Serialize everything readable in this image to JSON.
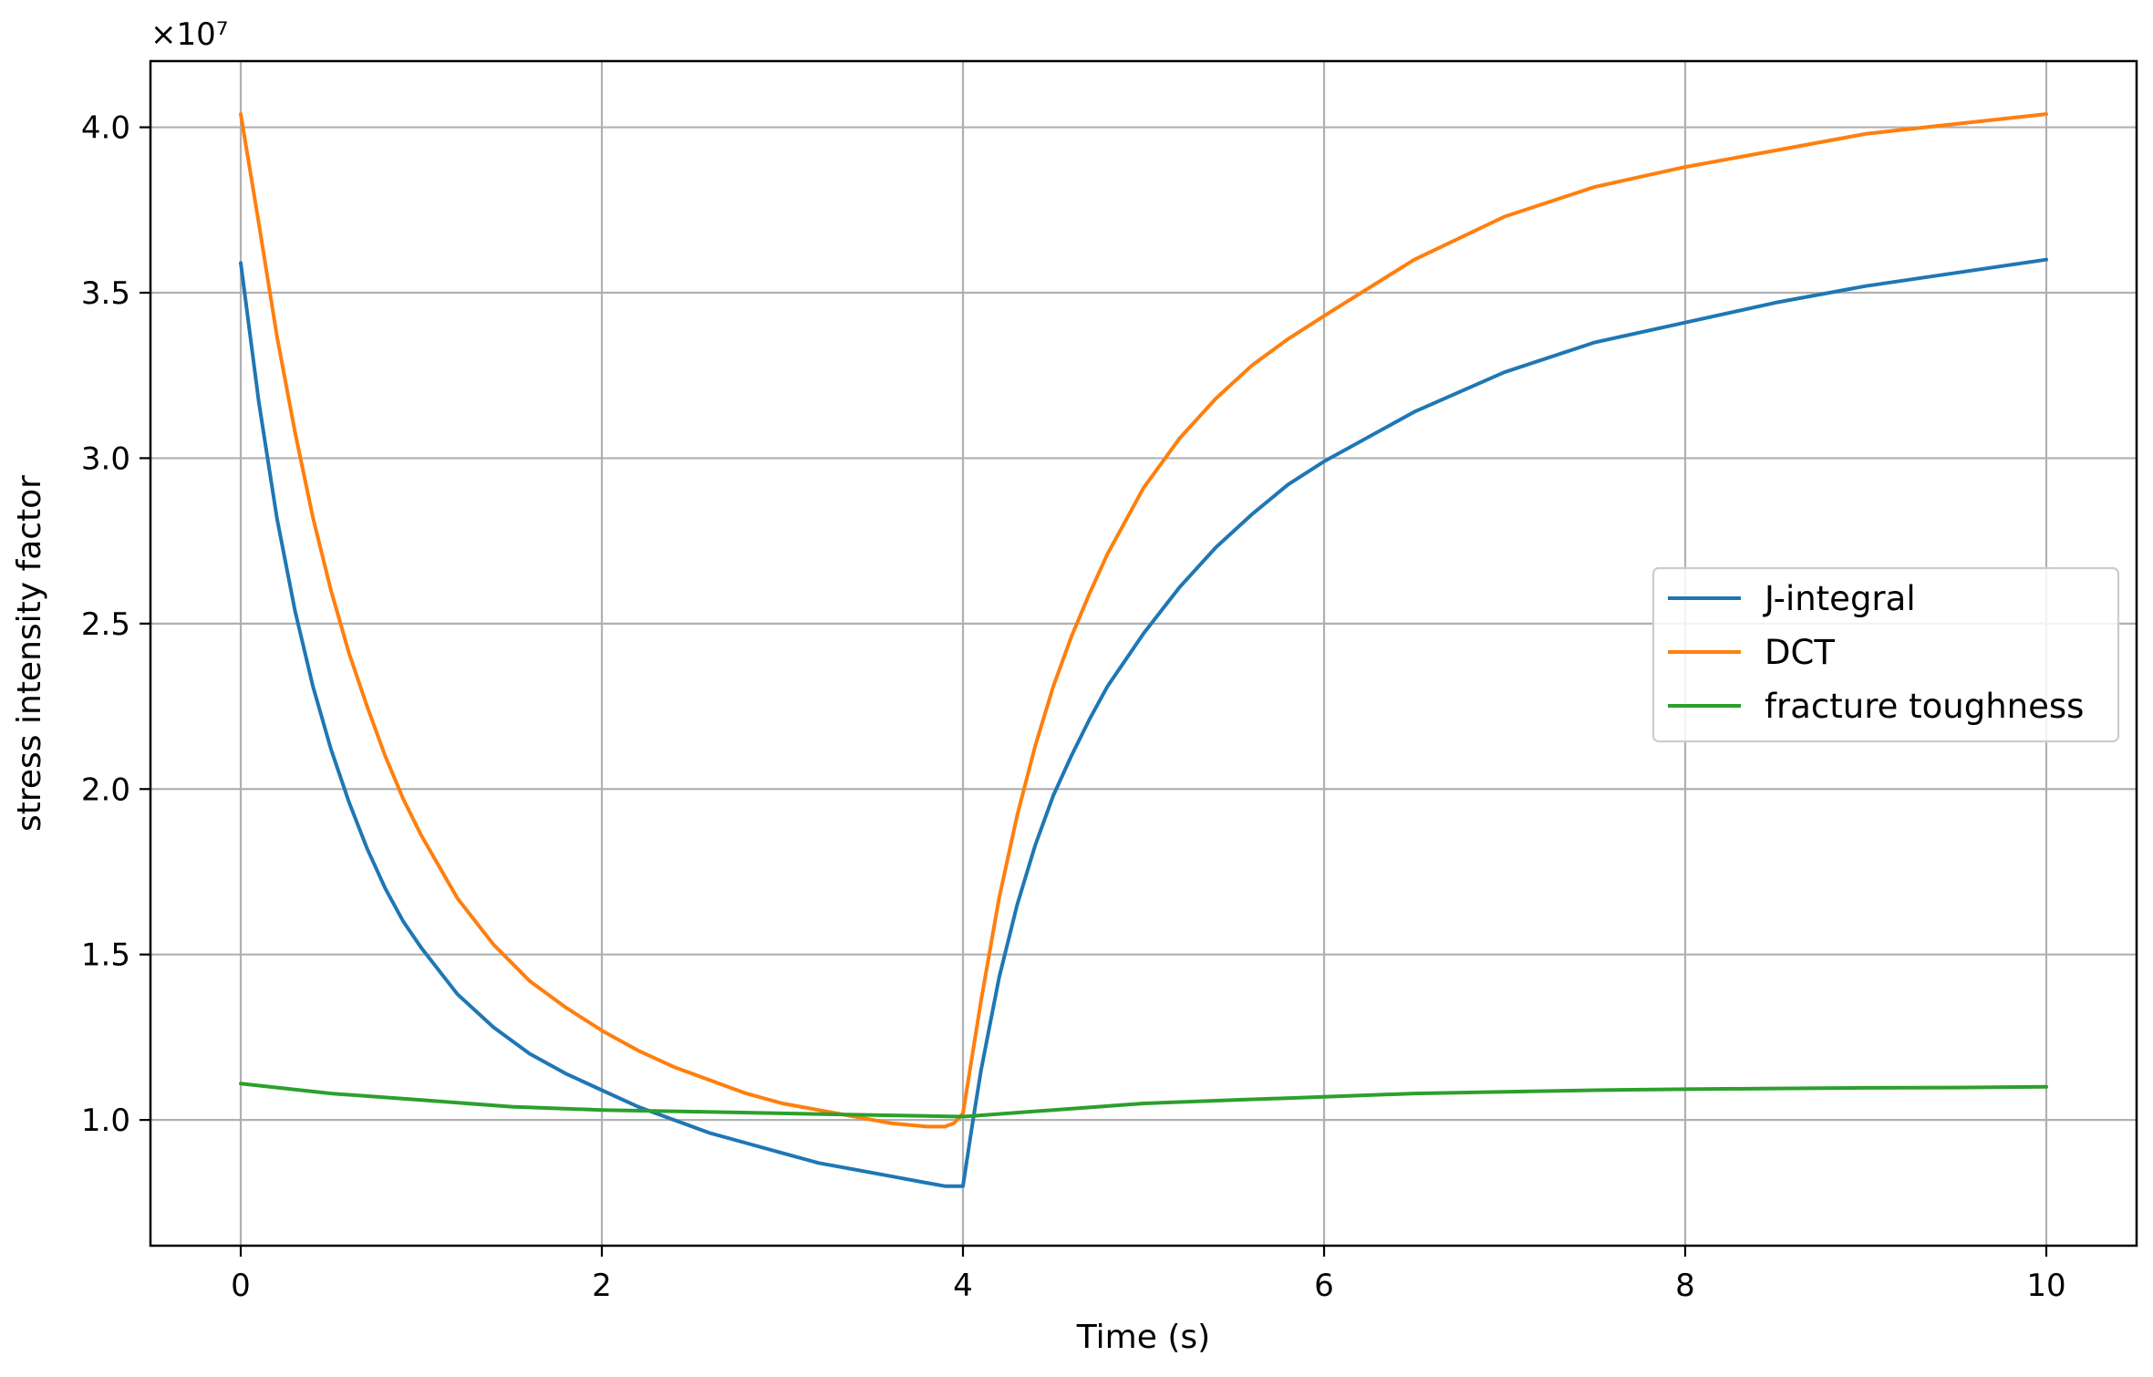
{
  "chart_data": {
    "type": "line",
    "title": "",
    "xlabel": "Time (s)",
    "ylabel": "stress intensity factor",
    "y_offset_label": "×10⁷",
    "xlim": [
      -0.5,
      10.5
    ],
    "ylim": [
      0.62,
      4.2
    ],
    "x_ticks": [
      0,
      2,
      4,
      6,
      8,
      10
    ],
    "x_tick_labels": [
      "0",
      "2",
      "4",
      "6",
      "8",
      "10"
    ],
    "y_ticks": [
      1.0,
      1.5,
      2.0,
      2.5,
      3.0,
      3.5,
      4.0
    ],
    "y_tick_labels": [
      "1.0",
      "1.5",
      "2.0",
      "2.5",
      "3.0",
      "3.5",
      "4.0"
    ],
    "grid": true,
    "legend_position": "center-right",
    "y_units_multiplier": 10000000,
    "series": [
      {
        "name": "J-integral",
        "color": "#1f77b4",
        "x": [
          0,
          0.1,
          0.2,
          0.3,
          0.4,
          0.5,
          0.6,
          0.7,
          0.8,
          0.9,
          1.0,
          1.2,
          1.4,
          1.6,
          1.8,
          2.0,
          2.2,
          2.4,
          2.6,
          2.8,
          3.0,
          3.2,
          3.4,
          3.6,
          3.8,
          3.9,
          4.0,
          4.05,
          4.1,
          4.2,
          4.3,
          4.4,
          4.5,
          4.6,
          4.7,
          4.8,
          5.0,
          5.2,
          5.4,
          5.6,
          5.8,
          6.0,
          6.5,
          7.0,
          7.5,
          8.0,
          8.5,
          9.0,
          9.5,
          10.0
        ],
        "y": [
          3.59,
          3.17,
          2.82,
          2.54,
          2.31,
          2.12,
          1.96,
          1.82,
          1.7,
          1.6,
          1.52,
          1.38,
          1.28,
          1.2,
          1.14,
          1.09,
          1.04,
          1.0,
          0.96,
          0.93,
          0.9,
          0.87,
          0.85,
          0.83,
          0.81,
          0.8,
          0.8,
          0.98,
          1.15,
          1.43,
          1.65,
          1.83,
          1.98,
          2.1,
          2.21,
          2.31,
          2.47,
          2.61,
          2.73,
          2.83,
          2.92,
          2.99,
          3.14,
          3.26,
          3.35,
          3.41,
          3.47,
          3.52,
          3.56,
          3.6
        ]
      },
      {
        "name": "DCT",
        "color": "#ff7f0e",
        "x": [
          0,
          0.1,
          0.2,
          0.3,
          0.4,
          0.5,
          0.6,
          0.7,
          0.8,
          0.9,
          1.0,
          1.2,
          1.4,
          1.6,
          1.8,
          2.0,
          2.2,
          2.4,
          2.6,
          2.8,
          3.0,
          3.2,
          3.4,
          3.6,
          3.8,
          3.9,
          3.95,
          4.0,
          4.1,
          4.2,
          4.3,
          4.4,
          4.5,
          4.6,
          4.7,
          4.8,
          5.0,
          5.2,
          5.4,
          5.6,
          5.8,
          6.0,
          6.5,
          7.0,
          7.5,
          8.0,
          8.5,
          9.0,
          9.5,
          10.0
        ],
        "y": [
          4.04,
          3.71,
          3.37,
          3.08,
          2.82,
          2.6,
          2.41,
          2.25,
          2.1,
          1.97,
          1.86,
          1.67,
          1.53,
          1.42,
          1.34,
          1.27,
          1.21,
          1.16,
          1.12,
          1.08,
          1.05,
          1.03,
          1.01,
          0.99,
          0.98,
          0.98,
          0.99,
          1.02,
          1.36,
          1.67,
          1.92,
          2.13,
          2.31,
          2.46,
          2.59,
          2.71,
          2.91,
          3.06,
          3.18,
          3.28,
          3.36,
          3.43,
          3.6,
          3.73,
          3.82,
          3.88,
          3.93,
          3.98,
          4.01,
          4.04
        ]
      },
      {
        "name": "fracture toughness",
        "color": "#2ca02c",
        "x": [
          0,
          0.5,
          1.0,
          1.5,
          2.0,
          2.5,
          3.0,
          3.5,
          4.0,
          4.5,
          5.0,
          5.5,
          6.0,
          6.5,
          7.0,
          7.5,
          8.0,
          8.5,
          9.0,
          9.5,
          10.0
        ],
        "y": [
          1.11,
          1.08,
          1.06,
          1.04,
          1.03,
          1.025,
          1.02,
          1.015,
          1.01,
          1.03,
          1.05,
          1.06,
          1.07,
          1.08,
          1.085,
          1.09,
          1.093,
          1.095,
          1.097,
          1.098,
          1.1
        ]
      }
    ]
  }
}
